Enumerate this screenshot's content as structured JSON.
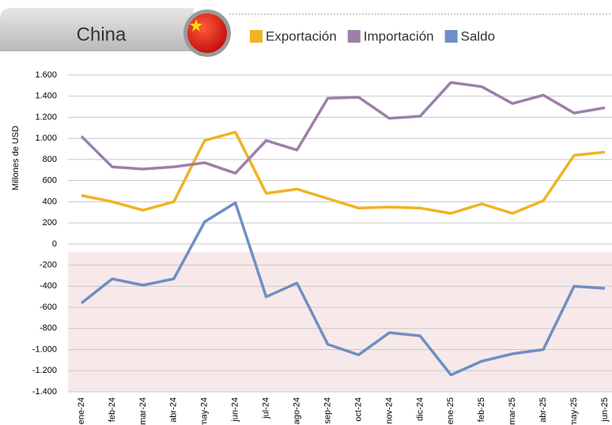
{
  "chart_data": {
    "type": "line",
    "title": "China",
    "y_label": "Millones de USD",
    "categories": [
      "ene-24",
      "feb-24",
      "mar-24",
      "abr-24",
      "may-24",
      "jun-24",
      "jul-24",
      "ago-24",
      "sep-24",
      "oct-24",
      "nov-24",
      "dic-24",
      "ene-25",
      "feb-25",
      "mar-25",
      "abr-25",
      "may-25",
      "jun-25"
    ],
    "series": [
      {
        "name": "Exportación",
        "color": "#f0b323",
        "values": [
          460,
          400,
          320,
          400,
          980,
          1060,
          480,
          520,
          430,
          340,
          350,
          340,
          290,
          380,
          290,
          410,
          840,
          870
        ]
      },
      {
        "name": "Importación",
        "color": "#9c80a9",
        "values": [
          1020,
          730,
          710,
          730,
          770,
          670,
          980,
          890,
          1380,
          1390,
          1190,
          1210,
          1530,
          1490,
          1330,
          1410,
          1240,
          1290
        ]
      },
      {
        "name": "Saldo",
        "color": "#6f8fc2",
        "values": [
          -560,
          -330,
          -390,
          -330,
          210,
          390,
          -500,
          -370,
          -950,
          -1050,
          -840,
          -870,
          -1240,
          -1110,
          -1040,
          -1000,
          -400,
          -420
        ]
      }
    ],
    "ylim": [
      -1400,
      1600
    ],
    "yticks": [
      {
        "value": -1400,
        "label": "-1.400"
      },
      {
        "value": -1200,
        "label": "-1.200"
      },
      {
        "value": -1000,
        "label": "-1.000"
      },
      -800,
      -600,
      -400,
      -200,
      0,
      200,
      400,
      600,
      800,
      {
        "value": 1000,
        "label": "1.000"
      },
      {
        "value": 1200,
        "label": "1.200"
      },
      {
        "value": 1400,
        "label": "1.400"
      },
      {
        "value": 1600,
        "label": "1.600"
      }
    ],
    "grid": true
  }
}
